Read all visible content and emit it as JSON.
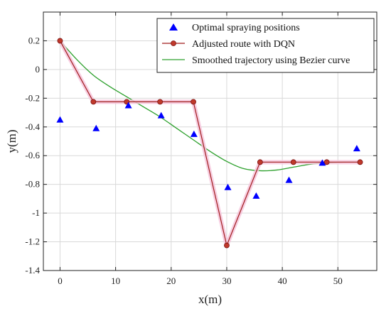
{
  "chart_data": {
    "type": "line",
    "xlabel": "x(m)",
    "ylabel": "y(m)",
    "xlim": [
      -3,
      57
    ],
    "ylim": [
      -1.4,
      0.4
    ],
    "x_ticks": [
      0,
      10,
      20,
      30,
      40,
      50
    ],
    "y_ticks": [
      0.2,
      0,
      -0.2,
      -0.4,
      -0.6,
      -0.8,
      -1,
      -1.2,
      -1.4
    ],
    "x_tick_labels": [
      "0",
      "10",
      "20",
      "30",
      "40",
      "50"
    ],
    "y_tick_labels": [
      "0.2",
      "0",
      "-0.2",
      "-0.4",
      "-0.6",
      "-0.8",
      "-1",
      "-1.2",
      "-1.4"
    ],
    "grid": true,
    "legend_position": "top-right",
    "series": [
      {
        "name": "Optimal spraying positions",
        "kind": "scatter",
        "marker": "triangle",
        "color": "#0000ff",
        "x": [
          0,
          6.5,
          12.3,
          18.2,
          24.1,
          30.2,
          35.3,
          41.2,
          47.2,
          53.4
        ],
        "y": [
          -0.35,
          -0.41,
          -0.25,
          -0.32,
          -0.45,
          -0.82,
          -0.88,
          -0.77,
          -0.65,
          -0.55
        ]
      },
      {
        "name": "Adjusted route with DQN",
        "kind": "line",
        "marker": "circle",
        "color": "#a01c1c",
        "marker_color": "#c0392b",
        "x": [
          0,
          6,
          12,
          18,
          24,
          30,
          36,
          42,
          48,
          54
        ],
        "y": [
          0.2,
          -0.225,
          -0.225,
          -0.225,
          -0.225,
          -1.225,
          -0.645,
          -0.645,
          -0.645,
          -0.645
        ]
      },
      {
        "name": "Smoothed trajectory using Bezier curve",
        "kind": "line",
        "color": "#2ca02c",
        "x": [
          0,
          3,
          6,
          9,
          12,
          15,
          18,
          21,
          24,
          27,
          30,
          33,
          36,
          39,
          42,
          45,
          48,
          51,
          54
        ],
        "y": [
          0.2,
          0.07,
          -0.04,
          -0.12,
          -0.19,
          -0.26,
          -0.33,
          -0.41,
          -0.49,
          -0.57,
          -0.64,
          -0.69,
          -0.705,
          -0.7,
          -0.68,
          -0.66,
          -0.65,
          -0.645,
          -0.645
        ]
      }
    ]
  }
}
